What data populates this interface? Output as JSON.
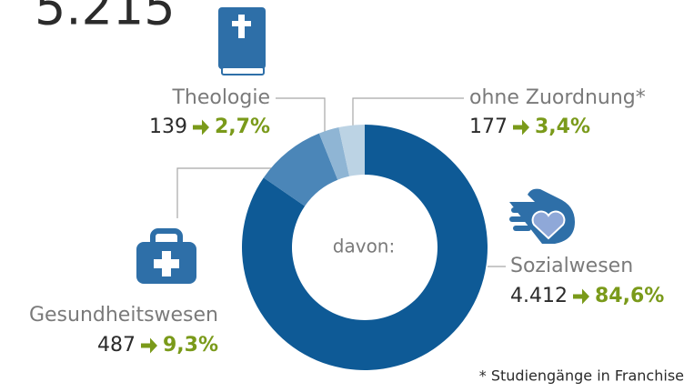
{
  "chart_data": {
    "type": "pie",
    "donut": true,
    "total": {
      "value": 5215,
      "label": "5.215"
    },
    "center_label": "davon:",
    "categories": [
      "Sozialwesen",
      "Gesundheitswesen",
      "Theologie",
      "ohne Zuordnung*"
    ],
    "values": [
      4412,
      487,
      139,
      177
    ],
    "value_labels": [
      "4.412",
      "487",
      "139",
      "177"
    ],
    "percentages": [
      84.6,
      9.3,
      2.7,
      3.4
    ],
    "percentage_labels": [
      "84,6%",
      "9,3%",
      "2,7%",
      "3,4%"
    ],
    "colors": [
      "#0e5a96",
      "#4b86b8",
      "#8fb5d4",
      "#bcd3e4"
    ],
    "footnote": "* Studiengänge in Franchise"
  }
}
